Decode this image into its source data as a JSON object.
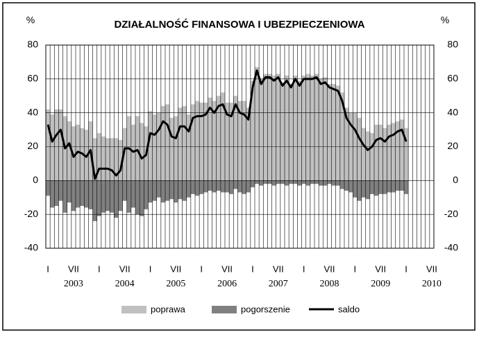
{
  "chart_data": {
    "type": "bar-line",
    "title": "DZIAŁALNOŚĆ FINANSOWA I UBEZPIECZENIOWA",
    "y_unit": "%",
    "y2_unit": "%",
    "categories": [
      "I",
      null,
      null,
      null,
      null,
      null,
      "VII",
      null,
      null,
      null,
      null,
      null,
      "I",
      null,
      null,
      null,
      null,
      null,
      "VII",
      null,
      null,
      null,
      null,
      null,
      "I",
      null,
      null,
      null,
      null,
      null,
      "VII",
      null,
      null,
      null,
      null,
      null,
      "I",
      null,
      null,
      null,
      null,
      null,
      "VII",
      null,
      null,
      null,
      null,
      null,
      "I",
      null,
      null,
      null,
      null,
      null,
      "VII",
      null,
      null,
      null,
      null,
      null,
      "I",
      null,
      null,
      null,
      null,
      null,
      "VII",
      null,
      null,
      null,
      null,
      null,
      "I",
      null,
      null,
      null,
      null,
      null,
      "VII",
      null,
      null,
      null,
      null,
      null,
      "I",
      null,
      null,
      null,
      null,
      null,
      "VII"
    ],
    "years": [
      "2003",
      "2004",
      "2005",
      "2006",
      "2007",
      "2008",
      "2009",
      "2010"
    ],
    "series": [
      {
        "name": "poprawa",
        "color": "#c0c0c0",
        "kind": "bar",
        "values": [
          42,
          39,
          42,
          42,
          38,
          35,
          32,
          33,
          31,
          30,
          35,
          25,
          28,
          26,
          25,
          25,
          25,
          24,
          31,
          38,
          33,
          38,
          34,
          32,
          41,
          39,
          40,
          44,
          45,
          37,
          38,
          43,
          44,
          39,
          45,
          47,
          46,
          46,
          49,
          47,
          50,
          52,
          46,
          46,
          50,
          47,
          47,
          43,
          59,
          67,
          60,
          63,
          63,
          62,
          63,
          58,
          62,
          57,
          62,
          59,
          62,
          63,
          62,
          63,
          60,
          61,
          57,
          57,
          56,
          52,
          43,
          40,
          40,
          37,
          31,
          29,
          28,
          33,
          33,
          31,
          33,
          34,
          35,
          36,
          31,
          null,
          null,
          null,
          null,
          null,
          null
        ]
      },
      {
        "name": "pogorszenie",
        "color": "#808080",
        "kind": "bar",
        "values": [
          -9,
          -16,
          -15,
          -12,
          -19,
          -13,
          -18,
          -16,
          -15,
          -16,
          -17,
          -24,
          -21,
          -19,
          -18,
          -19,
          -22,
          -18,
          -12,
          -19,
          -16,
          -20,
          -21,
          -17,
          -13,
          -12,
          -10,
          -13,
          -12,
          -11,
          -13,
          -11,
          -12,
          -10,
          -8,
          -9,
          -8,
          -7,
          -6,
          -7,
          -6,
          -7,
          -7,
          -8,
          -5,
          -7,
          -8,
          -7,
          -4,
          -2,
          -3,
          -2,
          -2,
          -3,
          -2,
          -2,
          -3,
          -2,
          -2,
          -3,
          -2,
          -3,
          -2,
          -2,
          -3,
          -3,
          -2,
          -3,
          -3,
          -5,
          -6,
          -7,
          -10,
          -12,
          -10,
          -11,
          -8,
          -9,
          -8,
          -8,
          -7,
          -7,
          -6,
          -6,
          -8,
          null,
          null,
          null,
          null,
          null,
          null
        ]
      },
      {
        "name": "saldo",
        "color": "#000000",
        "kind": "line",
        "values": [
          33,
          23,
          27,
          30,
          19,
          22,
          14,
          17,
          16,
          14,
          18,
          1,
          7,
          7,
          7,
          6,
          3,
          6,
          19,
          19,
          17,
          18,
          13,
          15,
          28,
          27,
          30,
          35,
          33,
          26,
          25,
          32,
          32,
          29,
          37,
          38,
          38,
          39,
          43,
          40,
          44,
          45,
          39,
          38,
          45,
          40,
          39,
          36,
          55,
          65,
          57,
          61,
          61,
          59,
          61,
          56,
          59,
          55,
          60,
          56,
          60,
          60,
          60,
          61,
          57,
          58,
          55,
          54,
          53,
          47,
          37,
          33,
          30,
          25,
          21,
          18,
          20,
          24,
          25,
          23,
          26,
          27,
          29,
          30,
          23,
          null,
          null,
          null,
          null,
          null,
          null
        ]
      }
    ],
    "ylim": [
      -40,
      80
    ],
    "yticks": [
      -40,
      -20,
      0,
      20,
      40,
      60,
      80
    ],
    "y2lim": [
      -40,
      80
    ],
    "y2ticks": [
      -40,
      -20,
      0,
      20,
      40,
      60,
      80
    ],
    "grid": true
  }
}
